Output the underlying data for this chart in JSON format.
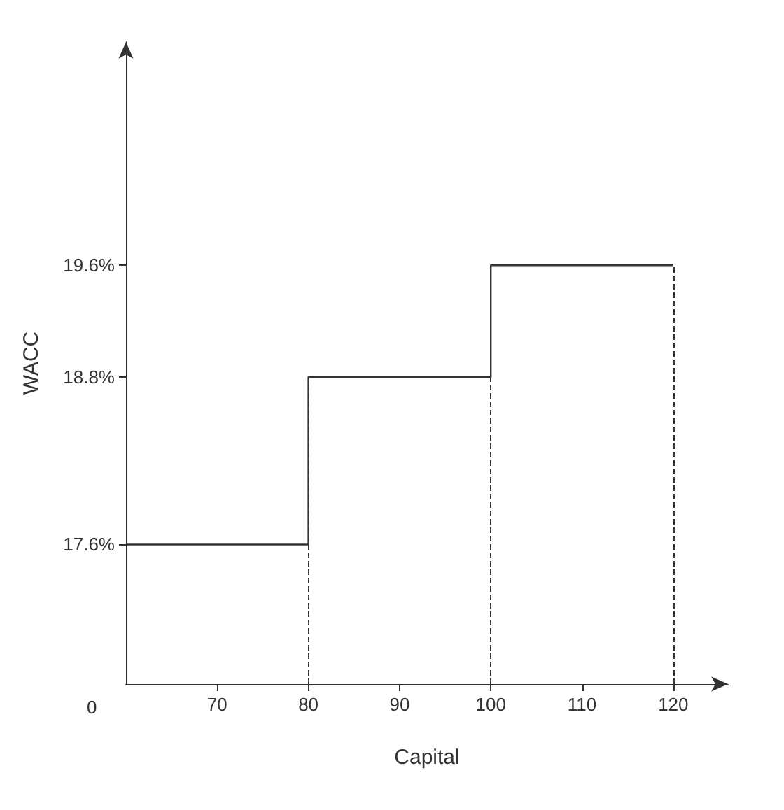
{
  "chart_data": {
    "type": "step",
    "xlabel": "Capital",
    "ylabel": "WACC",
    "x": [
      60,
      80,
      100,
      120
    ],
    "values": [
      17.6,
      18.8,
      19.6,
      19.6
    ],
    "color": "#333333",
    "xlim": [
      60,
      126
    ],
    "xticks": [
      70,
      80,
      90,
      100,
      110,
      120
    ],
    "annotations": [
      "0"
    ],
    "ylim": [
      16.6,
      21.2
    ],
    "yticks": [
      {
        "value": 17.6,
        "label": "17.6%"
      },
      {
        "value": 18.8,
        "label": "18.8%"
      },
      {
        "value": 19.6,
        "label": "19.6%"
      }
    ],
    "ref_lines": [
      {
        "axis": "x",
        "value": 80,
        "line_style": "dashed"
      },
      {
        "axis": "x",
        "value": 100,
        "line_style": "dashed"
      },
      {
        "axis": "x",
        "value": 120,
        "line_style": "dashed"
      }
    ],
    "grid": false,
    "marker": "none",
    "line_style": "solid"
  }
}
